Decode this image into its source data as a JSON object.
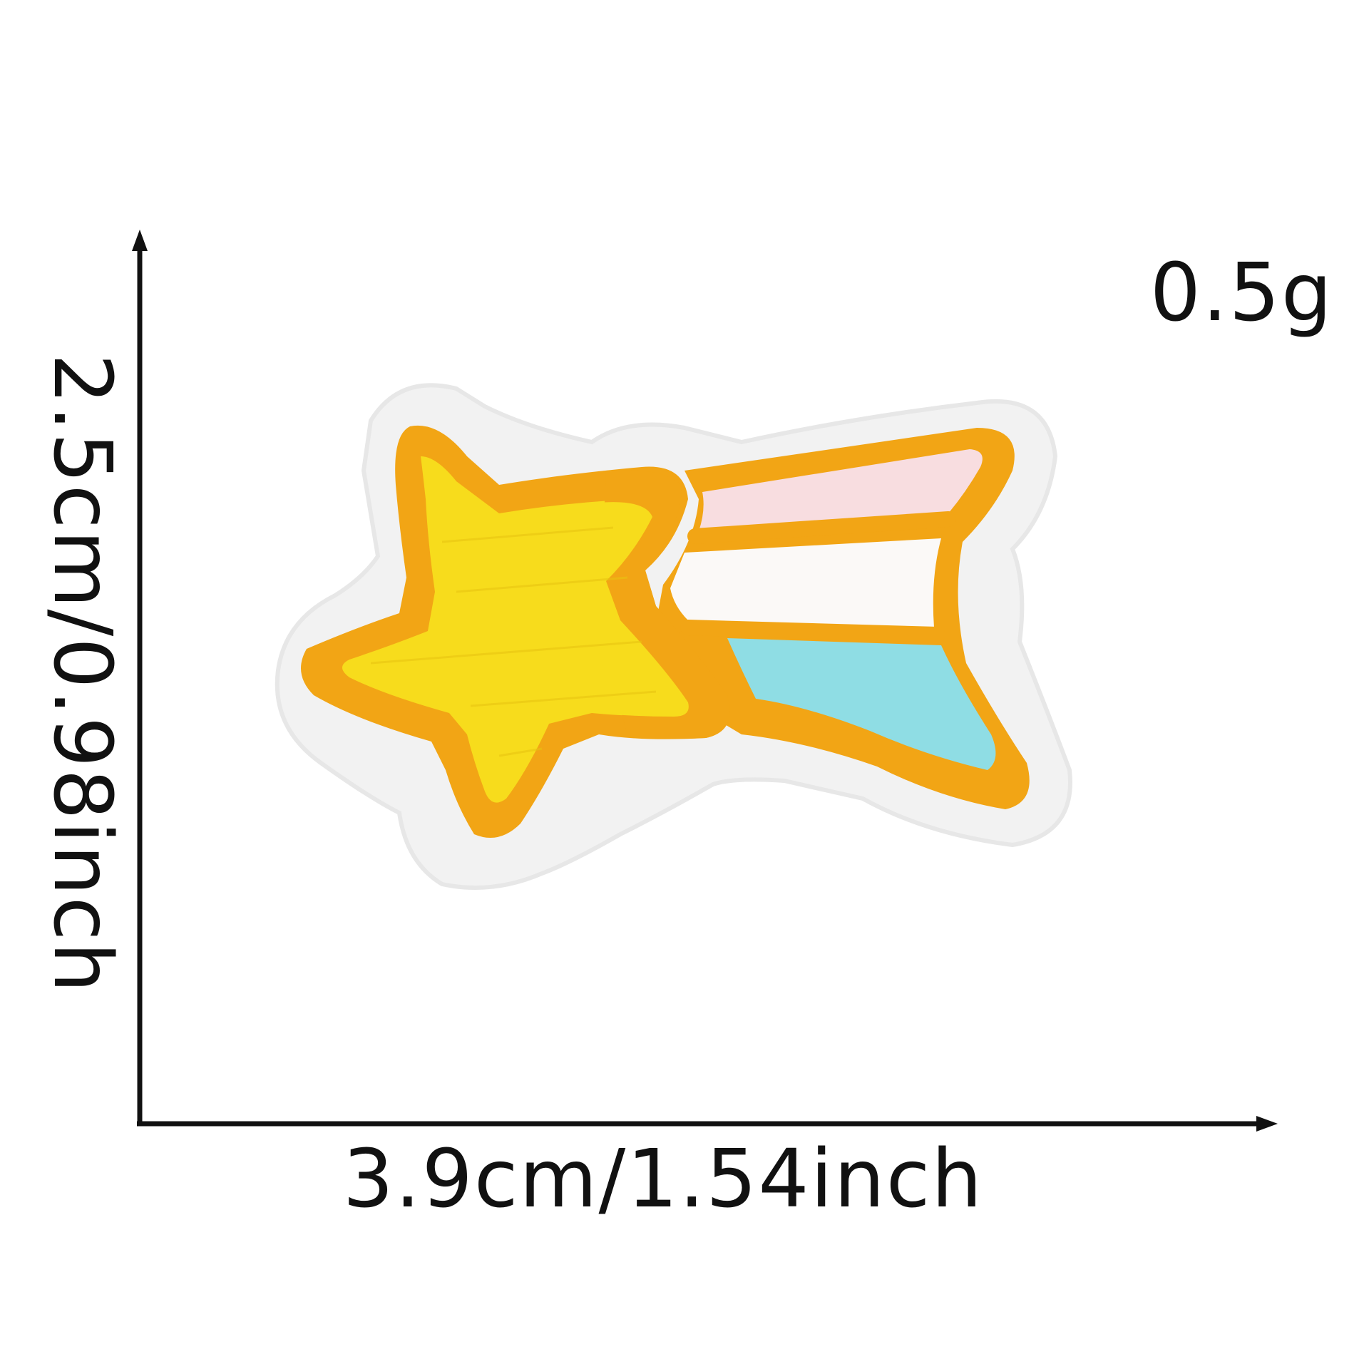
{
  "product": {
    "name": "shooting-star embroidered patch",
    "colors": {
      "felt_backing": "#f2f2f2",
      "star_fill": "#f7dc1c",
      "star_outline": "#f2a515",
      "trail_pink": "#f8dde0",
      "trail_white": "#fbf9f7",
      "trail_blue": "#8fdde4"
    }
  },
  "dimensions": {
    "weight_label": "0.5g",
    "width_label": "3.9cm/1.54inch",
    "height_label": "2.5cm/0.98inch"
  }
}
